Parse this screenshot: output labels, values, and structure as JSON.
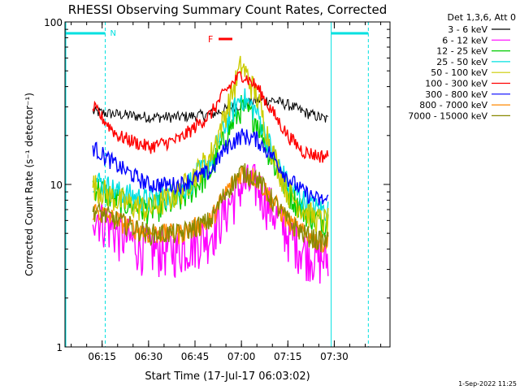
{
  "chart_data": {
    "type": "line",
    "title": "RHESSI Observing Summary Count Rates, Corrected",
    "xlabel": "Start Time (17-Jul-17 06:03:02)",
    "ylabel": "Corrected Count Rate (s⁻¹ detector⁻¹)",
    "yscale": "log",
    "ylim": [
      1,
      100
    ],
    "xlim": [
      "06:03",
      "07:48"
    ],
    "x_ticks": [
      "06:15",
      "06:30",
      "06:45",
      "07:00",
      "07:15",
      "07:30"
    ],
    "y_ticks": [
      "1",
      "10",
      "100"
    ],
    "legend_title": "Det 1,3,6, Att 0",
    "legend_position": "right",
    "footer": "1-Sep-2022 11:25",
    "annotations": {
      "night_label": "N",
      "flare_label": "F",
      "night_start": [
        "06:03",
        "06:16"
      ],
      "night_end": [
        "07:29",
        "07:41"
      ],
      "flare_span": [
        "06:55",
        "07:01"
      ]
    },
    "x": [
      "06:12",
      "06:20",
      "06:30",
      "06:40",
      "06:50",
      "06:55",
      "07:00",
      "07:05",
      "07:10",
      "07:15",
      "07:20",
      "07:25",
      "07:28"
    ],
    "series": [
      {
        "name": "3 - 6 keV",
        "color": "#000000",
        "values": [
          28,
          27,
          26,
          26,
          27,
          29,
          31,
          33,
          33,
          31,
          28,
          26,
          25
        ]
      },
      {
        "name": "6 - 12 keV",
        "color": "#ff00ff",
        "values": [
          7,
          5,
          4,
          4,
          5,
          7,
          10,
          10,
          7,
          5,
          4,
          3.5,
          3.5
        ]
      },
      {
        "name": "12 - 25 keV",
        "color": "#00cc00",
        "values": [
          10,
          8,
          7,
          8,
          12,
          20,
          30,
          25,
          14,
          9,
          7,
          6,
          6
        ]
      },
      {
        "name": "25 - 50 keV",
        "color": "#00e0e0",
        "values": [
          11,
          9,
          8,
          9,
          14,
          24,
          35,
          28,
          16,
          10,
          8,
          7,
          7
        ]
      },
      {
        "name": "50 - 100 keV",
        "color": "#cccc00",
        "values": [
          10,
          8,
          7,
          9,
          15,
          28,
          55,
          35,
          16,
          9,
          7,
          6,
          6
        ]
      },
      {
        "name": "100 - 300 keV",
        "color": "#ff0000",
        "values": [
          30,
          20,
          17,
          19,
          27,
          38,
          48,
          40,
          28,
          20,
          16,
          15,
          15
        ]
      },
      {
        "name": "300 - 800 keV",
        "color": "#0000ff",
        "values": [
          17,
          13,
          10,
          10,
          12,
          17,
          20,
          19,
          15,
          11,
          9,
          8,
          8
        ]
      },
      {
        "name": "800 - 7000 keV",
        "color": "#ff8800",
        "values": [
          7,
          6,
          5,
          5,
          6,
          9,
          12,
          11,
          8,
          6,
          5,
          4.5,
          4.5
        ]
      },
      {
        "name": "7000 - 15000 keV",
        "color": "#888800",
        "values": [
          7,
          6,
          5,
          5,
          6,
          9,
          12,
          11,
          8,
          6,
          5,
          4.5,
          4.5
        ]
      }
    ]
  }
}
